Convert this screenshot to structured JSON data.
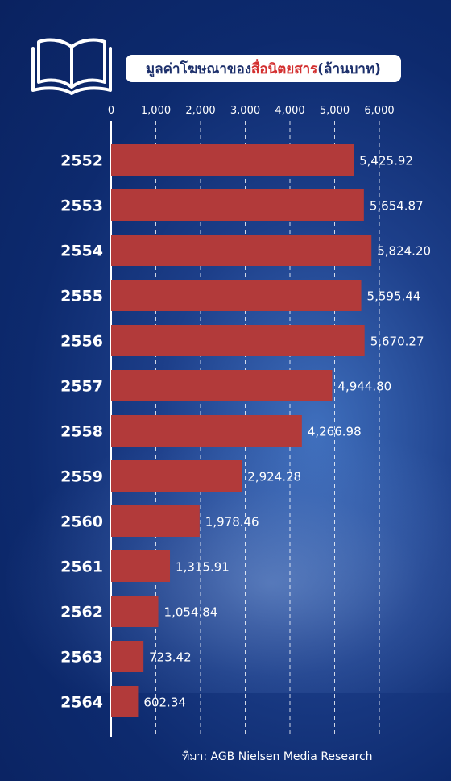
{
  "title": {
    "prefix": "มูลค่าโฆษณาของ",
    "highlight": "สื่อนิตยสาร",
    "suffix": " (ล้านบาท)"
  },
  "source": "ที่มา: AGB Nielsen Media Research",
  "colors": {
    "bar": "#b23a3a",
    "title_highlight": "#d32f2f",
    "background": "#0d2a6e"
  },
  "chart_data": {
    "type": "bar",
    "orientation": "horizontal",
    "categories": [
      "2552",
      "2553",
      "2554",
      "2555",
      "2556",
      "2557",
      "2558",
      "2559",
      "2560",
      "2561",
      "2562",
      "2563",
      "2564"
    ],
    "values": [
      5425.92,
      5654.87,
      5824.2,
      5595.44,
      5670.27,
      4944.8,
      4266.98,
      2924.28,
      1978.46,
      1315.91,
      1054.84,
      723.42,
      602.34
    ],
    "value_labels": [
      "5,425.92",
      "5,654.87",
      "5,824.20",
      "5,595.44",
      "5,670.27",
      "4,944.80",
      "4,266.98",
      "2,924.28",
      "1,978.46",
      "1,315.91",
      "1,054.84",
      "723.42",
      "602.34"
    ],
    "xticks": [
      0,
      1000,
      2000,
      3000,
      4000,
      5000,
      6000
    ],
    "xtick_labels": [
      "0",
      "1,000",
      "2,000",
      "3,000",
      "4,000",
      "5,000",
      "6,000"
    ],
    "xlim": [
      0,
      6000
    ],
    "grid": true,
    "axis_position": "top"
  }
}
